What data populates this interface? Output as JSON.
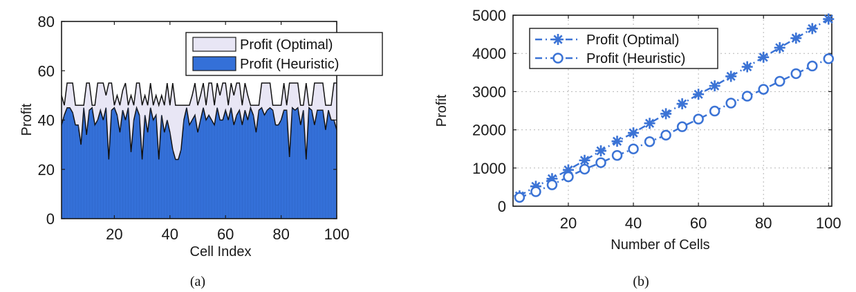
{
  "chart_data": [
    {
      "panel": "(a)",
      "type": "area",
      "xlabel": "Cell Index",
      "ylabel": "Profit",
      "xlim": [
        1,
        100
      ],
      "ylim": [
        0,
        80
      ],
      "xticks": [
        20,
        40,
        60,
        80,
        100
      ],
      "yticks": [
        0,
        20,
        40,
        60,
        80
      ],
      "grid": false,
      "legend": "top-right",
      "series": [
        {
          "name": "Profit (Optimal)",
          "color": "#e8e6f5",
          "values": [
            50,
            46,
            55,
            55,
            55,
            46,
            46,
            46,
            46,
            55,
            55,
            46,
            46,
            55,
            55,
            55,
            50,
            55,
            55,
            46,
            50,
            46,
            52,
            55,
            46,
            50,
            46,
            55,
            55,
            46,
            50,
            46,
            55,
            46,
            50,
            46,
            50,
            46,
            55,
            46,
            55,
            46,
            46,
            46,
            46,
            46,
            46,
            50,
            55,
            46,
            50,
            55,
            46,
            55,
            55,
            46,
            55,
            50,
            55,
            55,
            46,
            55,
            50,
            55,
            55,
            46,
            55,
            50,
            46,
            46,
            46,
            46,
            55,
            55,
            55,
            55,
            46,
            46,
            46,
            46,
            55,
            46,
            55,
            55,
            55,
            55,
            46,
            46,
            55,
            46,
            46,
            55,
            55,
            55,
            55,
            46,
            46,
            46,
            55,
            55
          ]
        },
        {
          "name": "Profit (Heuristic)",
          "color": "#3470d8",
          "values": [
            38,
            42,
            45,
            45,
            43,
            38,
            38,
            30,
            45,
            34,
            44,
            45,
            38,
            40,
            44,
            40,
            45,
            24,
            44,
            45,
            42,
            35,
            44,
            40,
            45,
            27,
            40,
            45,
            42,
            24,
            42,
            35,
            45,
            40,
            42,
            24,
            42,
            35,
            40,
            35,
            28,
            24,
            24,
            28,
            40,
            45,
            38,
            40,
            42,
            35,
            40,
            45,
            40,
            42,
            40,
            38,
            45,
            40,
            40,
            44,
            40,
            45,
            38,
            42,
            44,
            38,
            44,
            40,
            45,
            42,
            35,
            44,
            45,
            42,
            44,
            45,
            44,
            38,
            38,
            40,
            44,
            44,
            25,
            45,
            44,
            45,
            38,
            44,
            24,
            45,
            44,
            38,
            44,
            44,
            44,
            36,
            44,
            40,
            40,
            36
          ]
        }
      ]
    },
    {
      "panel": "(b)",
      "type": "line",
      "xlabel": "Number of Cells",
      "ylabel": "Profit",
      "xlim": [
        3,
        101
      ],
      "ylim": [
        0,
        5000
      ],
      "xticks": [
        20,
        40,
        60,
        80,
        100
      ],
      "yticks": [
        0,
        1000,
        2000,
        3000,
        4000,
        5000
      ],
      "grid": true,
      "legend": "top-left",
      "x": [
        5,
        10,
        15,
        20,
        25,
        30,
        35,
        40,
        45,
        50,
        55,
        60,
        65,
        70,
        75,
        80,
        85,
        90,
        95,
        100
      ],
      "series": [
        {
          "name": "Profit (Optimal)",
          "marker": "star",
          "color": "#3b73d5",
          "values": [
            270,
            520,
            720,
            950,
            1200,
            1450,
            1700,
            1920,
            2170,
            2420,
            2680,
            2930,
            3150,
            3400,
            3650,
            3900,
            4150,
            4400,
            4650,
            4900
          ]
        },
        {
          "name": "Profit (Heuristic)",
          "marker": "circle",
          "color": "#3b73d5",
          "values": [
            230,
            380,
            560,
            770,
            970,
            1140,
            1330,
            1500,
            1690,
            1860,
            2080,
            2280,
            2490,
            2700,
            2880,
            3060,
            3270,
            3470,
            3670,
            3860
          ]
        }
      ]
    }
  ],
  "captions": {
    "a": "(a)",
    "b": "(b)"
  }
}
